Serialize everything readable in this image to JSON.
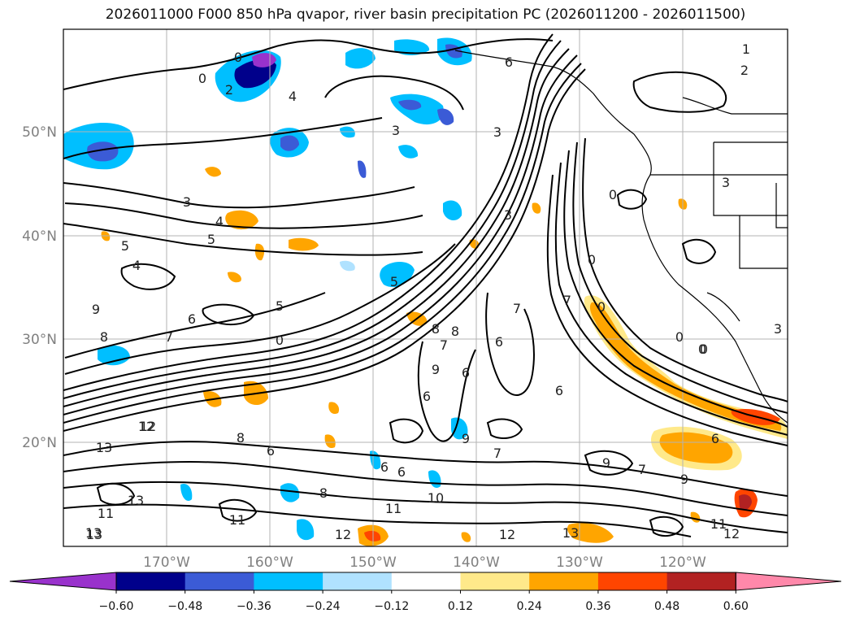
{
  "title": "2026011000 F000 850 hPa qvapor, river basin precipitation PC (2026011200 - 2026011500)",
  "lat_labels": [
    "50°N",
    "40°N",
    "30°N",
    "20°N"
  ],
  "lon_labels": [
    "170°W",
    "160°W",
    "150°W",
    "140°W",
    "130°W",
    "120°W"
  ],
  "colorbar": {
    "tick_labels": [
      "−0.60",
      "−0.48",
      "−0.36",
      "−0.24",
      "−0.12",
      "0.12",
      "0.24",
      "0.36",
      "0.48",
      "0.60"
    ],
    "colors": [
      "#9932cc",
      "#00008b",
      "#3b5bd6",
      "#00bfff",
      "#b0e2ff",
      "#ffffff",
      "#ffe98a",
      "#ffa500",
      "#ff4500",
      "#b22222",
      "#ff88aa"
    ]
  },
  "contour_labels": [
    {
      "text": "1"
    },
    {
      "text": "2"
    },
    {
      "text": "0"
    },
    {
      "text": "2"
    },
    {
      "text": "4"
    },
    {
      "text": "0"
    },
    {
      "text": "3"
    },
    {
      "text": "3"
    },
    {
      "text": "6"
    },
    {
      "text": "3"
    },
    {
      "text": "4"
    },
    {
      "text": "5"
    },
    {
      "text": "5"
    },
    {
      "text": "4"
    },
    {
      "text": "3"
    },
    {
      "text": "0"
    },
    {
      "text": "3"
    },
    {
      "text": "5"
    },
    {
      "text": "9"
    },
    {
      "text": "8"
    },
    {
      "text": "7"
    },
    {
      "text": "8"
    },
    {
      "text": "6"
    },
    {
      "text": "6"
    },
    {
      "text": "7"
    },
    {
      "text": "0"
    },
    {
      "text": "5"
    },
    {
      "text": "9"
    },
    {
      "text": "8"
    },
    {
      "text": "6"
    },
    {
      "text": "7"
    },
    {
      "text": "6"
    },
    {
      "text": "6"
    },
    {
      "text": "0"
    },
    {
      "text": "0"
    },
    {
      "text": "0"
    },
    {
      "text": "3"
    },
    {
      "text": "0"
    },
    {
      "text": "12"
    },
    {
      "text": "13"
    },
    {
      "text": "8"
    },
    {
      "text": "9"
    },
    {
      "text": "7"
    },
    {
      "text": "9"
    },
    {
      "text": "7"
    },
    {
      "text": "6"
    },
    {
      "text": "6"
    },
    {
      "text": "8"
    },
    {
      "text": "10"
    },
    {
      "text": "11"
    },
    {
      "text": "13"
    },
    {
      "text": "11"
    },
    {
      "text": "12"
    },
    {
      "text": "12"
    },
    {
      "text": "13"
    },
    {
      "text": "11"
    },
    {
      "text": "9"
    },
    {
      "text": "11"
    },
    {
      "text": "6"
    },
    {
      "text": "7"
    },
    {
      "text": "0"
    },
    {
      "text": "13"
    },
    {
      "text": "12"
    },
    {
      "text": "13"
    },
    {
      "text": "12"
    },
    {
      "text": "6"
    }
  ]
}
